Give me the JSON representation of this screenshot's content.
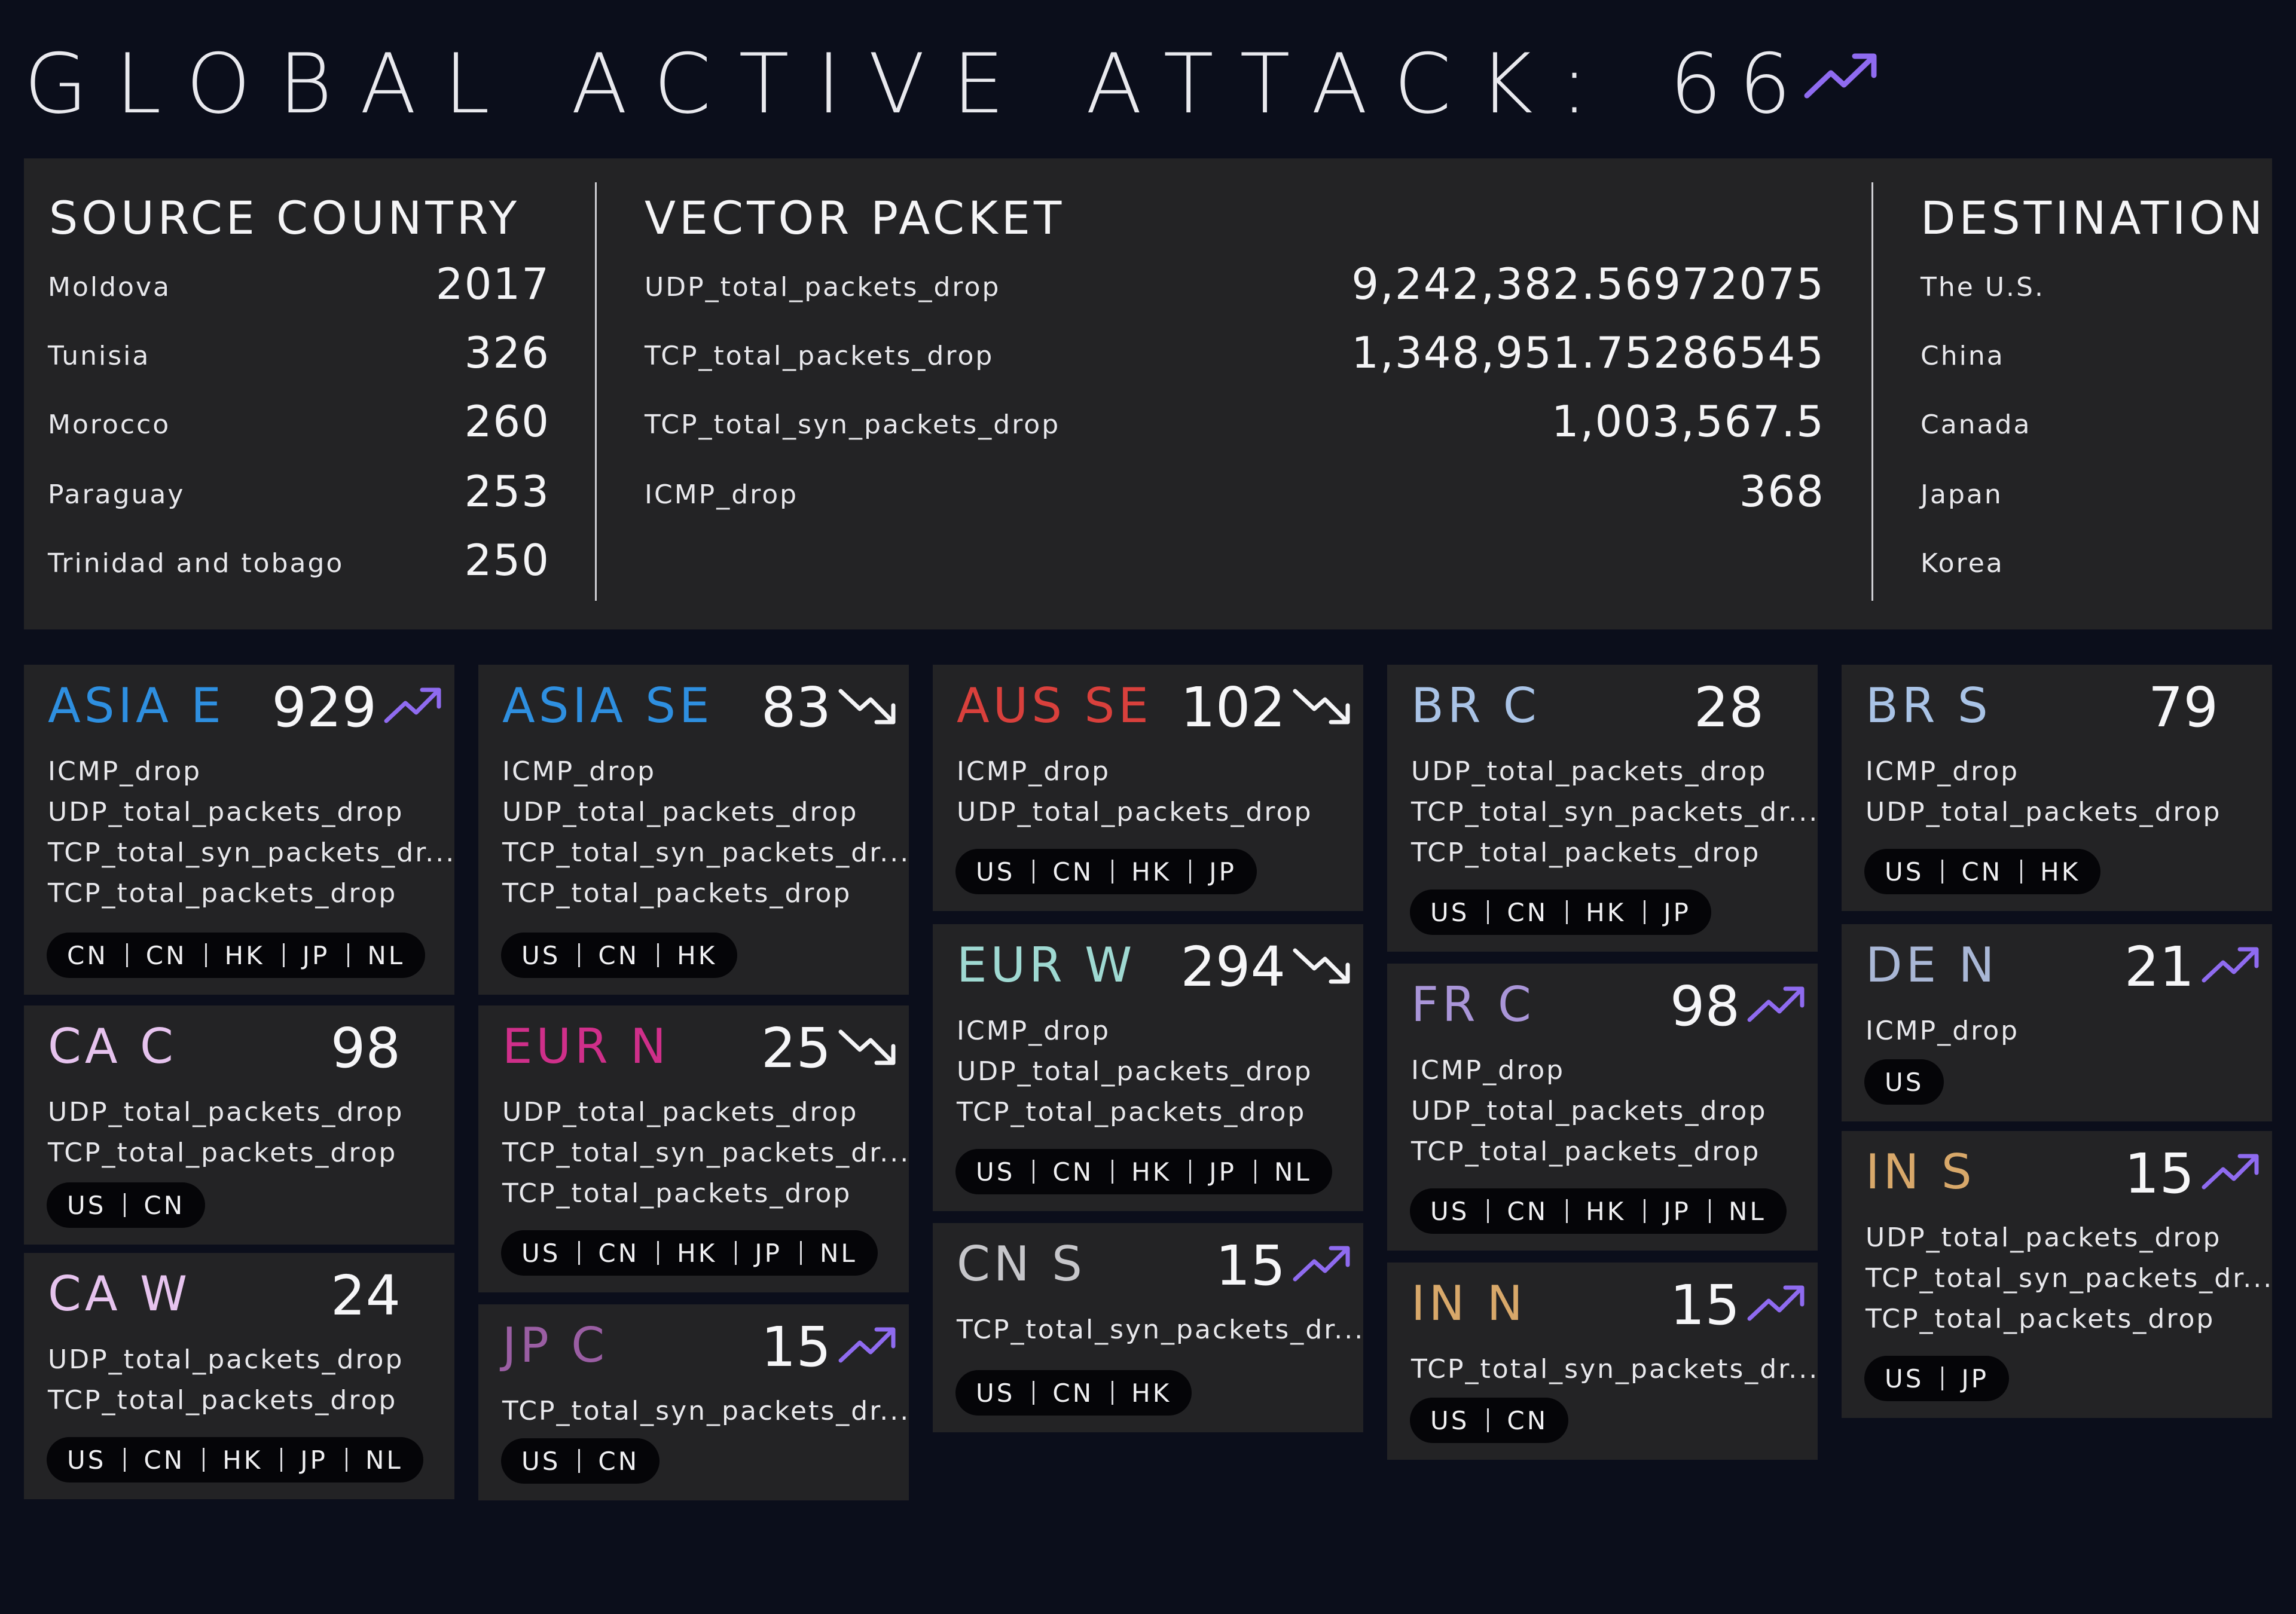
{
  "header": {
    "title": "GLOBAL ACTIVE ATTACK:",
    "count": "66",
    "trend_icon": "trend-up-icon",
    "trend_color": "#8f6bf0"
  },
  "summary": {
    "source": {
      "title": "SOURCE COUNTRY",
      "rows": [
        {
          "label": "Moldova",
          "value": "2017"
        },
        {
          "label": "Tunisia",
          "value": "326"
        },
        {
          "label": "Morocco",
          "value": "260"
        },
        {
          "label": "Paraguay",
          "value": "253"
        },
        {
          "label": "Trinidad and tobago",
          "value": "250"
        }
      ]
    },
    "vector": {
      "title": "VECTOR PACKET",
      "rows": [
        {
          "label": "UDP_total_packets_drop",
          "value": "9,242,382.56972075"
        },
        {
          "label": "TCP_total_packets_drop",
          "value": "1,348,951.75286545"
        },
        {
          "label": "TCP_total_syn_packets_drop",
          "value": "1,003,567.5"
        },
        {
          "label": "ICMP_drop",
          "value": "368"
        }
      ]
    },
    "destination": {
      "title": "DESTINATION",
      "rows": [
        "The U.S.",
        "China",
        "Canada",
        "Japan",
        "Korea"
      ]
    }
  },
  "cards": [
    {
      "region": "ASIA E",
      "color": "#2e8fe0",
      "count": "929",
      "trend": "up",
      "vectors": [
        "ICMP_drop",
        "UDP_total_packets_drop",
        "TCP_total_syn_packets_dr...",
        "TCP_total_packets_drop"
      ],
      "chips": [
        "CN",
        "CN",
        "HK",
        "JP",
        "NL"
      ]
    },
    {
      "region": "CA C",
      "color": "#e6c3ee",
      "count": "98",
      "trend": "none",
      "vectors": [
        "UDP_total_packets_drop",
        "TCP_total_packets_drop"
      ],
      "chips": [
        "US",
        "CN"
      ]
    },
    {
      "region": "CA W",
      "color": "#e6c3ee",
      "count": "24",
      "trend": "none",
      "vectors": [
        "UDP_total_packets_drop",
        "TCP_total_packets_drop"
      ],
      "chips": [
        "US",
        "CN",
        "HK",
        "JP",
        "NL"
      ]
    },
    {
      "region": "ASIA SE",
      "color": "#2e8fe0",
      "count": "83",
      "trend": "down",
      "vectors": [
        "ICMP_drop",
        "UDP_total_packets_drop",
        "TCP_total_syn_packets_dr...",
        "TCP_total_packets_drop"
      ],
      "chips": [
        "US",
        "CN",
        "HK"
      ]
    },
    {
      "region": "EUR N",
      "color": "#cf2f8a",
      "count": "25",
      "trend": "down",
      "vectors": [
        "UDP_total_packets_drop",
        "TCP_total_syn_packets_dr...",
        "TCP_total_packets_drop"
      ],
      "chips": [
        "US",
        "CN",
        "HK",
        "JP",
        "NL"
      ]
    },
    {
      "region": "JP C",
      "color": "#9a5ea3",
      "count": "15",
      "trend": "up",
      "vectors": [
        "TCP_total_syn_packets_dr..."
      ],
      "chips": [
        "US",
        "CN"
      ]
    },
    {
      "region": "AUS SE",
      "color": "#d9403c",
      "count": "102",
      "trend": "down",
      "vectors": [
        "ICMP_drop",
        "UDP_total_packets_drop"
      ],
      "chips": [
        "US",
        "CN",
        "HK",
        "JP"
      ]
    },
    {
      "region": "EUR W",
      "color": "#9fd9d2",
      "count": "294",
      "trend": "down",
      "vectors": [
        "ICMP_drop",
        "UDP_total_packets_drop",
        "TCP_total_packets_drop"
      ],
      "chips": [
        "US",
        "CN",
        "HK",
        "JP",
        "NL"
      ]
    },
    {
      "region": "CN S",
      "color": "#c6c6ca",
      "count": "15",
      "trend": "up",
      "vectors": [
        "TCP_total_syn_packets_dr..."
      ],
      "chips": [
        "US",
        "CN",
        "HK"
      ]
    },
    {
      "region": "BR C",
      "color": "#a9c3e6",
      "count": "28",
      "trend": "none",
      "vectors": [
        "UDP_total_packets_drop",
        "TCP_total_syn_packets_dr...",
        "TCP_total_packets_drop"
      ],
      "chips": [
        "US",
        "CN",
        "HK",
        "JP"
      ]
    },
    {
      "region": "FR C",
      "color": "#a995d8",
      "count": "98",
      "trend": "up",
      "vectors": [
        "ICMP_drop",
        "UDP_total_packets_drop",
        "TCP_total_packets_drop"
      ],
      "chips": [
        "US",
        "CN",
        "HK",
        "JP",
        "NL"
      ]
    },
    {
      "region": "IN N",
      "color": "#d8a86a",
      "count": "15",
      "trend": "up",
      "vectors": [
        "TCP_total_syn_packets_dr..."
      ],
      "chips": [
        "US",
        "CN"
      ]
    },
    {
      "region": "BR S",
      "color": "#a9c3e6",
      "count": "79",
      "trend": "none",
      "vectors": [
        "ICMP_drop",
        "UDP_total_packets_drop"
      ],
      "chips": [
        "US",
        "CN",
        "HK"
      ]
    },
    {
      "region": "DE N",
      "color": "#a9b7d6",
      "count": "21",
      "trend": "up",
      "vectors": [
        "ICMP_drop"
      ],
      "chips": [
        "US"
      ]
    },
    {
      "region": "IN S",
      "color": "#d8a86a",
      "count": "15",
      "trend": "up",
      "vectors": [
        "UDP_total_packets_drop",
        "TCP_total_syn_packets_dr...",
        "TCP_total_packets_drop"
      ],
      "chips": [
        "US",
        "JP"
      ]
    }
  ],
  "trend_colors": {
    "up": "#8f6bf0",
    "down": "#f4f4f6"
  }
}
